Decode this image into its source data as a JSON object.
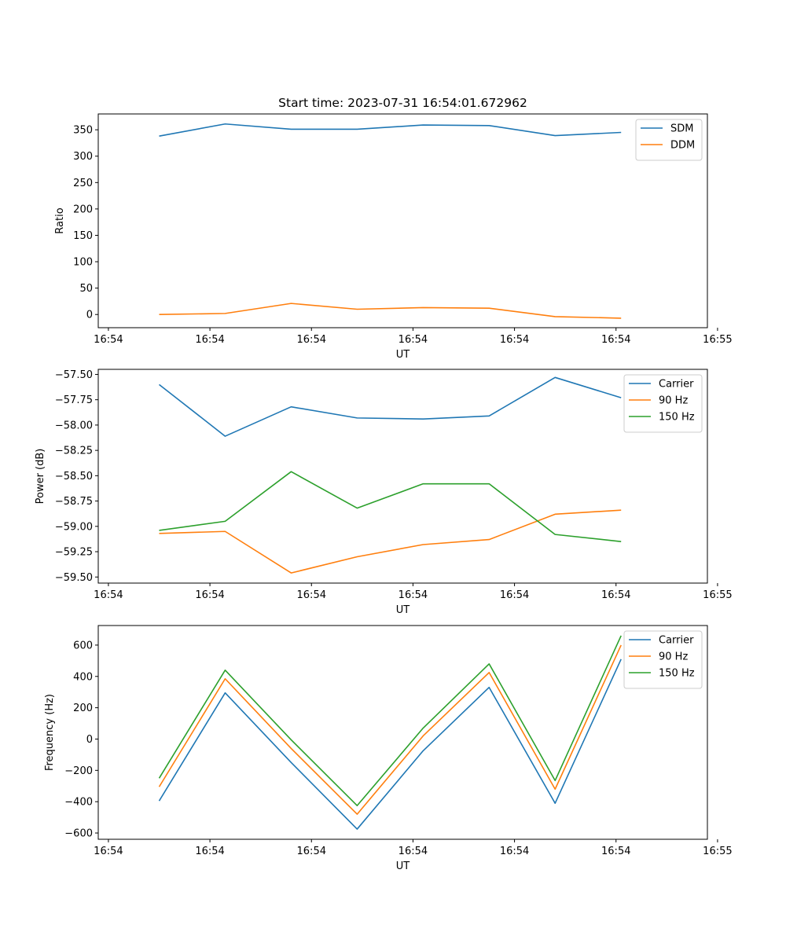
{
  "figure_title": "Start time: 2023-07-31 16:54:01.672962",
  "colors": {
    "blue": "#1f77b4",
    "orange": "#ff7f0e",
    "green": "#2ca02c"
  },
  "chart_data": [
    {
      "type": "line",
      "title": "Start time: 2023-07-31 16:54:01.672962",
      "xlabel": "UT",
      "ylabel": "Ratio",
      "x": [
        0.5,
        1.15,
        1.8,
        2.45,
        3.1,
        3.75,
        4.4,
        5.05
      ],
      "xlim": [
        -0.1,
        5.9
      ],
      "x_ticks": [
        0,
        1,
        2,
        3,
        4,
        5,
        6
      ],
      "x_tick_labels": [
        "16:54",
        "16:54",
        "16:54",
        "16:54",
        "16:54",
        "16:54",
        "16:55"
      ],
      "ylim": [
        -25,
        380
      ],
      "y_ticks": [
        0,
        50,
        100,
        150,
        200,
        250,
        300,
        350
      ],
      "y_tick_labels": [
        "0",
        "50",
        "100",
        "150",
        "200",
        "250",
        "300",
        "350"
      ],
      "legend_position": "top-right",
      "series": [
        {
          "name": "SDM",
          "color": "#1f77b4",
          "values": [
            338,
            361,
            351,
            351,
            359,
            358,
            339,
            345
          ]
        },
        {
          "name": "DDM",
          "color": "#ff7f0e",
          "values": [
            0,
            2,
            21,
            10,
            13,
            12,
            -4,
            -7
          ]
        }
      ]
    },
    {
      "type": "line",
      "title": "",
      "xlabel": "UT",
      "ylabel": "Power (dB)",
      "x": [
        0.5,
        1.15,
        1.8,
        2.45,
        3.1,
        3.75,
        4.4,
        5.05
      ],
      "xlim": [
        -0.1,
        5.9
      ],
      "x_ticks": [
        0,
        1,
        2,
        3,
        4,
        5,
        6
      ],
      "x_tick_labels": [
        "16:54",
        "16:54",
        "16:54",
        "16:54",
        "16:54",
        "16:54",
        "16:55"
      ],
      "ylim": [
        -59.56,
        -57.45
      ],
      "y_ticks": [
        -57.5,
        -57.75,
        -58.0,
        -58.25,
        -58.5,
        -58.75,
        -59.0,
        -59.25,
        -59.5
      ],
      "y_tick_labels": [
        "−57.50",
        "−57.75",
        "−58.00",
        "−58.25",
        "−58.50",
        "−58.75",
        "−59.00",
        "−59.25",
        "−59.50"
      ],
      "legend_position": "top-right",
      "series": [
        {
          "name": "Carrier",
          "color": "#1f77b4",
          "values": [
            -57.6,
            -58.11,
            -57.82,
            -57.93,
            -57.94,
            -57.91,
            -57.53,
            -57.73
          ]
        },
        {
          "name": "90 Hz",
          "color": "#ff7f0e",
          "values": [
            -59.07,
            -59.05,
            -59.46,
            -59.3,
            -59.18,
            -59.13,
            -58.88,
            -58.84
          ]
        },
        {
          "name": "150 Hz",
          "color": "#2ca02c",
          "values": [
            -59.04,
            -58.95,
            -58.46,
            -58.82,
            -58.58,
            -58.58,
            -59.08,
            -59.15
          ]
        }
      ]
    },
    {
      "type": "line",
      "title": "",
      "xlabel": "UT",
      "ylabel": "Frequency (Hz)",
      "x": [
        0.5,
        1.15,
        1.8,
        2.45,
        3.1,
        3.75,
        4.4,
        5.05
      ],
      "xlim": [
        -0.1,
        5.9
      ],
      "x_ticks": [
        0,
        1,
        2,
        3,
        4,
        5,
        6
      ],
      "x_tick_labels": [
        "16:54",
        "16:54",
        "16:54",
        "16:54",
        "16:54",
        "16:54",
        "16:55"
      ],
      "ylim": [
        -640,
        725
      ],
      "y_ticks": [
        -600,
        -400,
        -200,
        0,
        200,
        400,
        600
      ],
      "y_tick_labels": [
        "−600",
        "−400",
        "−200",
        "0",
        "200",
        "400",
        "600"
      ],
      "legend_position": "top-right",
      "series": [
        {
          "name": "Carrier",
          "color": "#1f77b4",
          "values": [
            -395,
            295,
            -150,
            -575,
            -75,
            330,
            -410,
            510
          ]
        },
        {
          "name": "90 Hz",
          "color": "#ff7f0e",
          "values": [
            -305,
            385,
            -60,
            -480,
            20,
            425,
            -320,
            600
          ]
        },
        {
          "name": "150 Hz",
          "color": "#2ca02c",
          "values": [
            -250,
            440,
            -5,
            -425,
            70,
            480,
            -265,
            660
          ]
        }
      ]
    }
  ]
}
